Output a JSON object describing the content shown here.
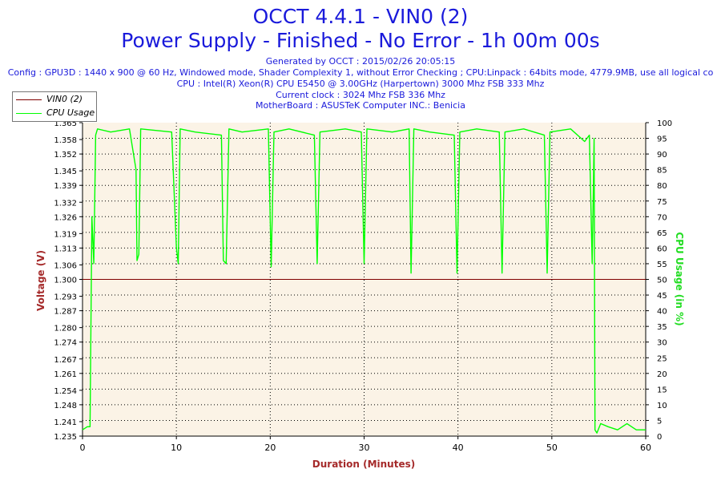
{
  "chart_data": {
    "type": "line",
    "title": "OCCT 4.4.1 - VIN0 (2)",
    "subtitle": "Power Supply - Finished - No Error - 1h 00m 00s",
    "info_lines": [
      "Generated by OCCT : 2015/02/26 20:05:15",
      "Config : GPU3D : 1440 x 900 @ 60 Hz, Windowed mode, Shader Complexity 1, without Error Checking ; CPU:Linpack : 64bits mode, 4779.9MB, use all logical co",
      "CPU : Intel(R) Xeon(R) CPU E5450 @ 3.00GHz (Harpertown) 3000 Mhz FSB 333 Mhz",
      "Current clock : 3024 Mhz FSB 336 Mhz",
      "MotherBoard : ASUSTeK Computer INC.: Benicia"
    ],
    "xlabel": "Duration (Minutes)",
    "ylabel_left": "Voltage (V)",
    "ylabel_right": "CPU Usage (in %)",
    "xlim": [
      0,
      60
    ],
    "ylim_left": [
      1.235,
      1.365
    ],
    "ylim_right": [
      0,
      100
    ],
    "x_ticks": [
      "0",
      "10",
      "20",
      "30",
      "40",
      "50",
      "60"
    ],
    "y_ticks_left": [
      "1.365",
      "1.358",
      "1.352",
      "1.345",
      "1.339",
      "1.332",
      "1.326",
      "1.319",
      "1.313",
      "1.306",
      "1.300",
      "1.293",
      "1.287",
      "1.280",
      "1.274",
      "1.267",
      "1.261",
      "1.254",
      "1.248",
      "1.241",
      "1.235"
    ],
    "y_ticks_right": [
      "100",
      "95",
      "90",
      "85",
      "80",
      "75",
      "70",
      "65",
      "60",
      "55",
      "50",
      "45",
      "40",
      "35",
      "30",
      "25",
      "20",
      "15",
      "10",
      "5",
      "0"
    ],
    "grid": true,
    "legend_position": "top-left",
    "series": [
      {
        "name": "VIN0 (2)",
        "axis": "left",
        "color": "#800000",
        "x": [
          0,
          60
        ],
        "y": [
          1.3,
          1.3
        ]
      },
      {
        "name": "CPU Usage",
        "axis": "right",
        "color": "#00ff00",
        "x": [
          0,
          0.5,
          0.8,
          1.0,
          1.2,
          1.4,
          1.6,
          3.0,
          5.0,
          5.7,
          5.8,
          6.0,
          6.2,
          9.5,
          10.0,
          10.2,
          10.4,
          12.0,
          14.8,
          15.0,
          15.3,
          15.6,
          17.0,
          19.8,
          20.1,
          20.4,
          22.0,
          24.7,
          25.0,
          25.3,
          28.0,
          29.7,
          30.0,
          30.3,
          33.0,
          34.8,
          35.0,
          35.3,
          37.0,
          39.6,
          39.9,
          40.2,
          42.0,
          44.4,
          44.7,
          45.0,
          47.0,
          49.2,
          49.5,
          49.8,
          52.0,
          53.5,
          54.0,
          54.3,
          54.5,
          54.6,
          54.8,
          55.2,
          56.0,
          57.0,
          58.0,
          59.0,
          60.0
        ],
        "y": [
          2,
          3,
          3,
          70,
          55,
          96,
          98,
          97,
          98,
          85,
          56,
          58,
          98,
          97,
          60,
          55,
          98,
          97,
          96,
          56,
          55,
          98,
          97,
          98,
          54,
          97,
          98,
          96,
          55,
          97,
          98,
          97,
          55,
          98,
          97,
          98,
          52,
          98,
          97,
          96,
          52,
          97,
          98,
          97,
          52,
          97,
          98,
          96,
          52,
          97,
          98,
          94,
          96,
          55,
          95,
          2,
          1,
          4,
          3,
          2,
          4,
          2,
          2
        ]
      }
    ]
  }
}
